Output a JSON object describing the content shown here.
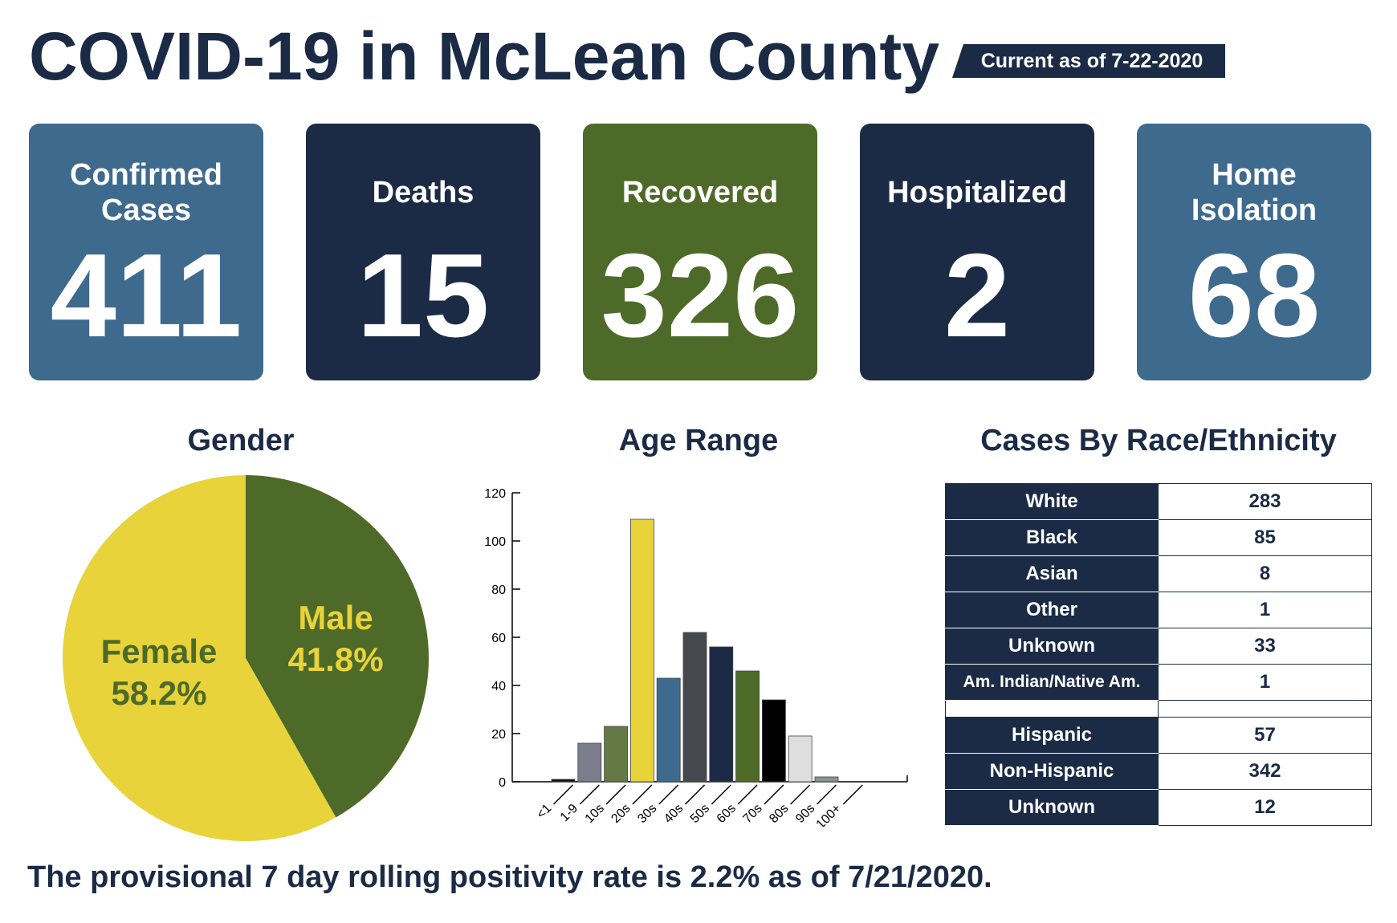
{
  "title": "COVID-19 in McLean County",
  "current_as_of": "Current as of 7-22-2020",
  "stats": [
    {
      "label": "Confirmed Cases",
      "value": "411",
      "color": "#3e6a8e"
    },
    {
      "label": "Deaths",
      "value": "15",
      "color": "#1b2b45"
    },
    {
      "label": "Recovered",
      "value": "326",
      "color": "#4e6a29"
    },
    {
      "label": "Hospitalized",
      "value": "2",
      "color": "#1b2b45"
    },
    {
      "label": "Home Isolation",
      "value": "68",
      "color": "#3e6a8e"
    }
  ],
  "gender_title": "Gender",
  "age_title": "Age Range",
  "race_title": "Cases By Race/Ethnicity",
  "race_rows": [
    {
      "label": "White",
      "value": "283"
    },
    {
      "label": "Black",
      "value": "85"
    },
    {
      "label": "Asian",
      "value": "8"
    },
    {
      "label": "Other",
      "value": "1"
    },
    {
      "label": "Unknown",
      "value": "33"
    },
    {
      "label": "Am. Indian/Native Am.",
      "value": "1"
    }
  ],
  "ethnicity_rows": [
    {
      "label": "Hispanic",
      "value": "57"
    },
    {
      "label": "Non-Hispanic",
      "value": "342"
    },
    {
      "label": "Unknown",
      "value": "12"
    }
  ],
  "footer": "The provisional 7 day rolling positivity rate is 2.2% as of 7/21/2020.",
  "chart_data": [
    {
      "type": "pie",
      "title": "Gender",
      "slices": [
        {
          "label": "Male",
          "value": 41.8,
          "display": "41.8%",
          "color": "#4e6a29",
          "label_color": "#e8d33a"
        },
        {
          "label": "Female",
          "value": 58.2,
          "display": "58.2%",
          "color": "#e8d33a",
          "label_color": "#4e6a29"
        }
      ]
    },
    {
      "type": "bar",
      "title": "Age Range",
      "categories": [
        "<1",
        "1-9",
        "10s",
        "20s",
        "30s",
        "40s",
        "50s",
        "60s",
        "70s",
        "80s",
        "90s",
        "100+"
      ],
      "values": [
        1,
        16,
        23,
        109,
        43,
        62,
        56,
        46,
        34,
        19,
        2,
        0
      ],
      "colors": [
        "#111111",
        "#7b7d8c",
        "#637a47",
        "#e8d33a",
        "#3e6a8e",
        "#47484f",
        "#1b2b45",
        "#4e6a29",
        "#000000",
        "#dedede",
        "#8e9097",
        "#cccccc"
      ],
      "yticks": [
        0,
        20,
        40,
        60,
        80,
        100,
        120
      ],
      "ylim": [
        0,
        120
      ],
      "grid": false
    }
  ]
}
